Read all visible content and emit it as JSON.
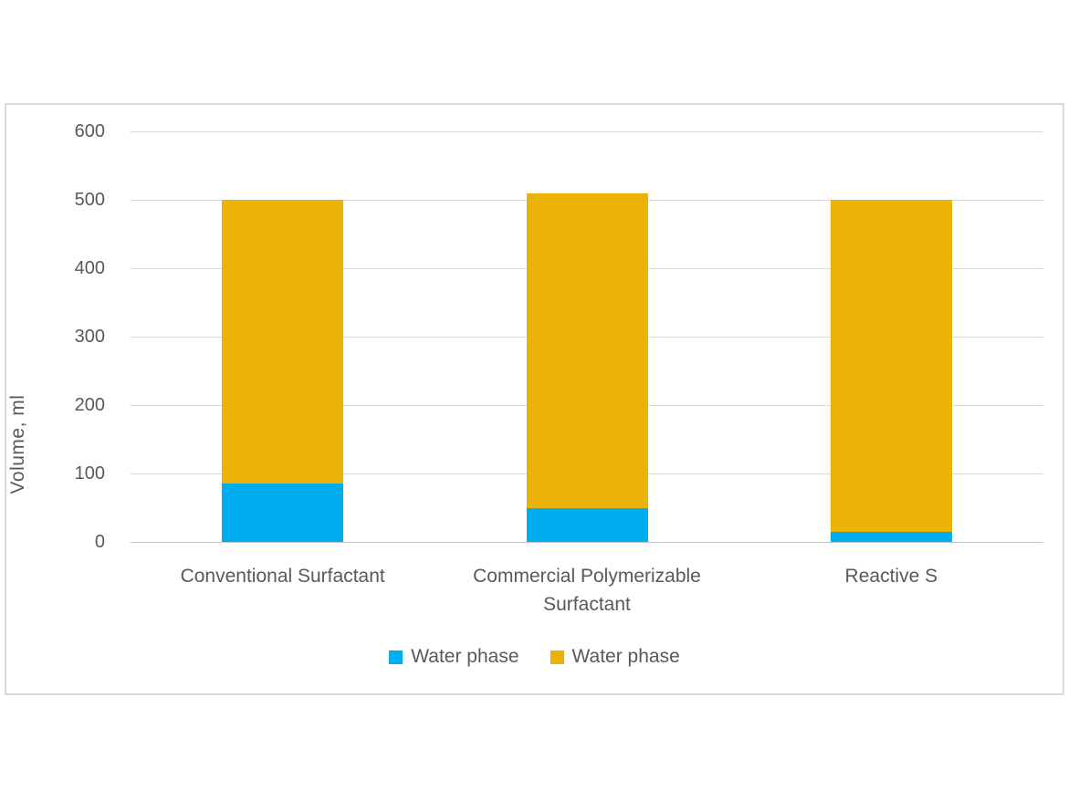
{
  "chart_data": {
    "type": "bar",
    "stacked": true,
    "orientation": "vertical",
    "title": "",
    "xlabel": "",
    "ylabel": "Volume, ml",
    "ylim": [
      0,
      600
    ],
    "yticks": [
      0,
      100,
      200,
      300,
      400,
      500,
      600
    ],
    "grid": true,
    "categories": [
      "Conventional Surfactant",
      "Commercial Polymerizable Surfactant",
      "Reactive S"
    ],
    "series": [
      {
        "name": "Water phase",
        "color": "#00AEEF",
        "values": [
          85,
          50,
          15
        ]
      },
      {
        "name": "Water phase",
        "color": "#EBB207",
        "values": [
          415,
          460,
          485
        ]
      }
    ],
    "totals": [
      500,
      510,
      500
    ],
    "legend_position": "bottom",
    "legend": [
      {
        "label": "Water phase",
        "color": "#00AEEF"
      },
      {
        "label": "Water phase",
        "color": "#EBB207"
      }
    ]
  },
  "colors": {
    "grid": "#D9D9D9",
    "frame_border": "#D9D9D9",
    "axis_line": "#C6C6C6",
    "text": "#595959",
    "background": "#FFFFFF"
  }
}
